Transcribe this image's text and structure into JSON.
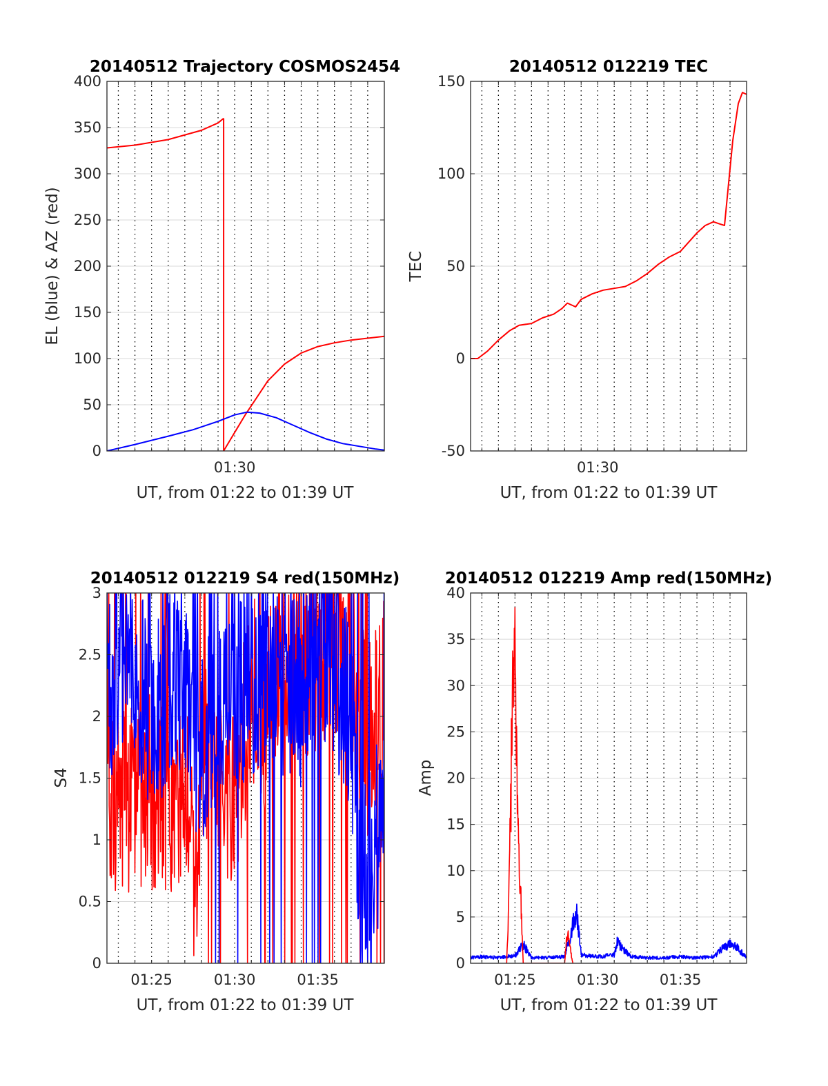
{
  "colors": {
    "red": "#ff0000",
    "blue": "#0000ff",
    "axis": "#262626",
    "grid": "#d9d9d9",
    "dotgrid": "#000000"
  },
  "chart_data": [
    {
      "type": "line",
      "title": "20140512 Trajectory COSMOS2454",
      "xlabel": "UT, from 01:22 to 01:39 UT",
      "ylabel": "EL (blue) & AZ (red)",
      "xlim": [
        "01:22:19",
        "01:39:00"
      ],
      "ylim": [
        0,
        400
      ],
      "yticks": [
        "0",
        "50",
        "100",
        "150",
        "200",
        "250",
        "300",
        "350",
        "400"
      ],
      "xticks": [
        "01:30"
      ],
      "grid": true,
      "series": [
        {
          "color": "red",
          "x": [
            "01:22:19",
            "01:24:00",
            "01:26:00",
            "01:28:00",
            "01:29:00",
            "01:29:20"
          ],
          "y": [
            328,
            331,
            337,
            347,
            355,
            360
          ]
        },
        {
          "color": "red",
          "x": [
            "01:29:20",
            "01:29:20"
          ],
          "y": [
            360,
            0
          ]
        },
        {
          "color": "red",
          "x": [
            "01:29:20",
            "01:30:00",
            "01:30:40",
            "01:31:20",
            "01:32:00",
            "01:33:00",
            "01:34:00",
            "01:35:00",
            "01:36:00",
            "01:37:00",
            "01:38:00",
            "01:39:00"
          ],
          "y": [
            0,
            20,
            40,
            58,
            76,
            94,
            106,
            113,
            117,
            120,
            122,
            124
          ]
        },
        {
          "color": "blue",
          "x": [
            "01:22:19",
            "01:24:00",
            "01:26:00",
            "01:27:30",
            "01:29:00",
            "01:30:00",
            "01:30:45",
            "01:31:30",
            "01:32:30",
            "01:33:30",
            "01:34:30",
            "01:35:30",
            "01:36:30",
            "01:37:30",
            "01:38:30",
            "01:39:00"
          ],
          "y": [
            0,
            7,
            16,
            23,
            32,
            39,
            42,
            41,
            36,
            28,
            20,
            13,
            8,
            5,
            2,
            1
          ]
        }
      ]
    },
    {
      "type": "line",
      "title": "20140512 012219 TEC",
      "xlabel": "UT, from 01:22 to 01:39 UT",
      "ylabel": "TEC",
      "xlim": [
        "01:22:19",
        "01:39:00"
      ],
      "ylim": [
        -50,
        150
      ],
      "yticks": [
        "-50",
        "0",
        "50",
        "100",
        "150"
      ],
      "xticks": [
        "01:30"
      ],
      "grid": true,
      "series": [
        {
          "color": "red",
          "x": [
            "01:22:19",
            "01:22:45",
            "01:23:20",
            "01:24:00",
            "01:24:40",
            "01:25:15",
            "01:26:00",
            "01:26:40",
            "01:27:20",
            "01:27:50",
            "01:28:10",
            "01:28:40",
            "01:29:00",
            "01:29:40",
            "01:30:20",
            "01:31:00",
            "01:31:40",
            "01:32:20",
            "01:33:00",
            "01:33:40",
            "01:34:20",
            "01:35:00",
            "01:35:30",
            "01:36:00",
            "01:36:30",
            "01:37:00",
            "01:37:20",
            "01:37:40",
            "01:37:55",
            "01:38:10",
            "01:38:30",
            "01:38:45",
            "01:39:00"
          ],
          "y": [
            0,
            0,
            4,
            10,
            15,
            18,
            19,
            22,
            24,
            27,
            30,
            28,
            32,
            35,
            37,
            38,
            39,
            42,
            46,
            51,
            55,
            58,
            63,
            68,
            72,
            74,
            73,
            72,
            95,
            118,
            138,
            144,
            143
          ]
        }
      ]
    },
    {
      "type": "line",
      "title": "20140512 012219 S4 red(150MHz)",
      "xlabel": "UT, from 01:22 to 01:39 UT",
      "ylabel": "S4",
      "xlim": [
        "01:22:19",
        "01:39:00"
      ],
      "ylim": [
        0,
        3
      ],
      "yticks": [
        "0",
        "0.5",
        "1",
        "1.5",
        "2",
        "2.5",
        "3"
      ],
      "xticks": [
        "01:25",
        "01:30",
        "01:35"
      ],
      "grid": true,
      "series": [
        {
          "color": "red",
          "x": [
            "01:22:19",
            "01:23:00",
            "01:24:00",
            "01:25:00",
            "01:26:00",
            "01:27:00",
            "01:27:40",
            "01:28:20",
            "01:29:00",
            "01:30:00",
            "01:31:00",
            "01:32:00",
            "01:33:00",
            "01:34:00",
            "01:35:00",
            "01:36:00",
            "01:37:00",
            "01:38:00",
            "01:39:00"
          ],
          "y": [
            1.1,
            1.3,
            1.3,
            1.4,
            1.2,
            1.5,
            0.7,
            1.8,
            1.5,
            1.4,
            2.2,
            2.0,
            2.6,
            2.4,
            2.5,
            2.6,
            2.3,
            1.8,
            2.2
          ]
        },
        {
          "color": "blue",
          "x": [
            "01:22:19",
            "01:23:00",
            "01:24:00",
            "01:25:00",
            "01:26:00",
            "01:27:00",
            "01:28:00",
            "01:29:00",
            "01:30:00",
            "01:31:00",
            "01:32:00",
            "01:33:00",
            "01:34:00",
            "01:35:00",
            "01:36:00",
            "01:37:00",
            "01:37:30",
            "01:38:00",
            "01:39:00"
          ],
          "y": [
            2.1,
            2.5,
            2.4,
            2.0,
            2.2,
            2.2,
            1.7,
            2.1,
            2.2,
            2.3,
            2.4,
            2.3,
            2.2,
            2.5,
            2.4,
            2.0,
            0.9,
            0.8,
            1.2
          ]
        }
      ]
    },
    {
      "type": "line",
      "title": "20140512 012219 Amp red(150MHz)",
      "xlabel": "UT, from 01:22 to 01:39 UT",
      "ylabel": "Amp",
      "xlim": [
        "01:22:19",
        "01:39:00"
      ],
      "ylim": [
        0,
        40
      ],
      "yticks": [
        "0",
        "5",
        "10",
        "15",
        "20",
        "25",
        "30",
        "35",
        "40"
      ],
      "xticks": [
        "01:25",
        "01:30",
        "01:35"
      ],
      "grid": true,
      "series": [
        {
          "color": "blue",
          "x": [
            "01:22:19",
            "01:23:00",
            "01:24:00",
            "01:25:00",
            "01:25:30",
            "01:26:00",
            "01:27:00",
            "01:28:00",
            "01:28:30",
            "01:28:45",
            "01:29:00",
            "01:30:00",
            "01:31:00",
            "01:31:10",
            "01:32:00",
            "01:33:00",
            "01:34:00",
            "01:35:00",
            "01:36:00",
            "01:37:00",
            "01:37:30",
            "01:38:00",
            "01:38:30",
            "01:39:00"
          ],
          "y": [
            0.6,
            0.7,
            0.6,
            0.8,
            2.0,
            0.6,
            0.6,
            0.7,
            4.0,
            5.5,
            0.9,
            0.7,
            0.9,
            2.3,
            0.7,
            0.6,
            0.6,
            0.7,
            0.6,
            0.7,
            1.5,
            2.0,
            1.6,
            0.6
          ]
        },
        {
          "color": "red",
          "x": [
            "01:24:30",
            "01:24:40",
            "01:24:50",
            "01:25:00",
            "01:25:05",
            "01:25:10",
            "01:25:20",
            "01:25:30",
            "01:28:00",
            "01:28:10",
            "01:28:20",
            "01:28:30"
          ],
          "y": [
            0,
            12,
            36,
            39,
            30,
            21,
            10,
            0,
            0,
            4.3,
            2.0,
            0
          ]
        }
      ]
    }
  ]
}
